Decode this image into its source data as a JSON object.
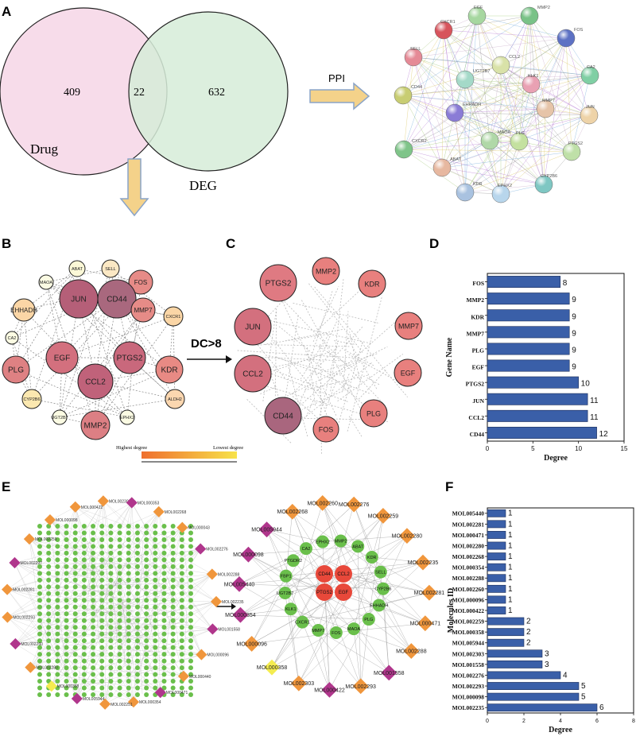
{
  "panel_labels": [
    "A",
    "B",
    "C",
    "D",
    "E",
    "F"
  ],
  "venn": {
    "left_label": "Drug",
    "right_label": "DEG",
    "left_only": "409",
    "overlap": "22",
    "right_only": "632",
    "left_color": "#f7dcea",
    "right_color": "#d6ecd8"
  },
  "arrows": {
    "ppi_label": "PPI",
    "dc_label": "DC>8"
  },
  "ppi_nodes": [
    "EGF",
    "MMP2",
    "CXCR1",
    "FOS",
    "SELL",
    "CCL2",
    "CA2",
    "UGT2B7",
    "KLK1",
    "CD44",
    "JUN",
    "EHHADH",
    "MMP7",
    "MAOA",
    "PLG",
    "CXCR2",
    "PTGS2",
    "ABAT",
    "CYP2B6",
    "KDR",
    "EPHX2"
  ],
  "network_b": {
    "nodes": [
      "ABAT",
      "SELL",
      "MAOA",
      "FOS",
      "JUN",
      "CD44",
      "EHHADH",
      "MMP7",
      "CXCR1",
      "CA2",
      "EGF",
      "PTGS2",
      "PLG",
      "KDR",
      "CCL2",
      "CYP2B6",
      "ALDH2",
      "UGT2B7",
      "EPHX2",
      "MMP2"
    ],
    "legend_high": "Highest degree",
    "legend_low": "Lowest degree"
  },
  "network_c": {
    "nodes": [
      "MMP2",
      "KDR",
      "PTGS2",
      "MMP7",
      "JUN",
      "EGF",
      "CCL2",
      "PLG",
      "CD44",
      "FOS"
    ]
  },
  "chart_d": {
    "chart_data": {
      "type": "bar",
      "categories": [
        "FOS",
        "MMP2",
        "KDR",
        "MMP7",
        "PLG",
        "EGF",
        "PTGS2",
        "JUN",
        "CCL2",
        "CD44"
      ],
      "values": [
        8,
        9,
        9,
        9,
        9,
        9,
        10,
        11,
        11,
        12
      ],
      "xlabel": "Degree",
      "ylabel": "Gene Name",
      "xlim": [
        0,
        15
      ],
      "xticks": [
        "0",
        "5",
        "10",
        "15"
      ],
      "bar_color": "#3a5fa8"
    }
  },
  "network_e_left": {
    "nodes": [
      "MOL000422",
      "MOL002303",
      "MOL000353",
      "MOL002268",
      "MOL000043",
      "MOL002276",
      "MOL002288",
      "MOL002235",
      "MOL001558",
      "MOL000096",
      "MOL000440",
      "MOL000471",
      "MOL000354",
      "MOL002251",
      "MOL005944",
      "MOL000358",
      "MOL002280",
      "MOL002260",
      "MOL002293",
      "MOL002281",
      "MOL002297",
      "MOL002259",
      "MOL000098"
    ]
  },
  "network_e_right": {
    "compounds": [
      "MOL002268",
      "MOL002260",
      "MOL002276",
      "MOL002259",
      "MOL002280",
      "MOL002235",
      "MOL002281",
      "MOL000471",
      "MOL002288",
      "MOL001558",
      "MOL002293",
      "MOL000422",
      "MOL002303",
      "MOL000358",
      "MOL000096",
      "MOL000354",
      "MOL005440",
      "MOL000098",
      "MOL005944"
    ],
    "genes": [
      "CA2",
      "EPHX2",
      "MMP2",
      "ABAT",
      "KDR",
      "SELL",
      "CYP2B6",
      "CD44",
      "CCL2",
      "EHHADH",
      "PLG",
      "PTGS2",
      "EGF",
      "MAOA",
      "FOS",
      "MMP7",
      "CXCR1",
      "KLK1",
      "UGT2B7",
      "FBP1",
      "PTGDR2"
    ]
  },
  "chart_f": {
    "chart_data": {
      "type": "bar",
      "categories": [
        "MOL005440",
        "MOL002281",
        "MOL000471",
        "MOL002280",
        "MOL002268",
        "MOL000354",
        "MOL002288",
        "MOL002260",
        "MOL000096",
        "MOL000422",
        "MOL002259",
        "MOL000358",
        "MOL005944",
        "MOL002303",
        "MOL001558",
        "MOL002276",
        "MOL002293",
        "MOL000098",
        "MOL002235"
      ],
      "values": [
        1,
        1,
        1,
        1,
        1,
        1,
        1,
        1,
        1,
        1,
        2,
        2,
        2,
        3,
        3,
        4,
        5,
        5,
        6
      ],
      "xlabel": "Degree",
      "ylabel": "Molecules ID",
      "xlim": [
        0,
        8
      ],
      "xticks": [
        "0",
        "2",
        "4",
        "6",
        "8"
      ],
      "bar_color": "#3a5fa8"
    }
  },
  "colors": {
    "arrow_fill": "#f4d28a",
    "arrow_stroke": "#8aa4c8",
    "gene_green": "#6abf4b",
    "orange": "#f0963c",
    "magenta": "#b0368c",
    "yellow": "#f4ec50",
    "red": "#e8483a"
  }
}
